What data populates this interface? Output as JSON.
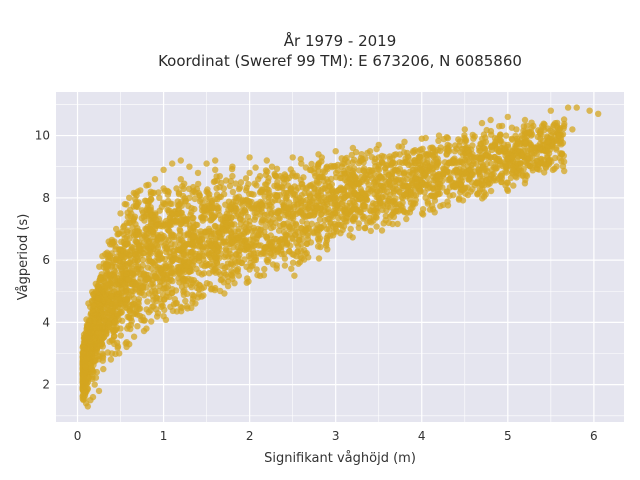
{
  "chart_data": {
    "type": "scatter",
    "title_line1": "År 1979 - 2019",
    "title_line2": "Koordinat (Sweref 99 TM): E 673206, N 6085860",
    "xlabel": "Signifikant våghöjd (m)",
    "ylabel": "Vågperiod (s)",
    "xlim": [
      -0.25,
      6.35
    ],
    "ylim": [
      0.8,
      11.4
    ],
    "x_ticks": [
      0,
      1,
      2,
      3,
      4,
      5,
      6
    ],
    "x_tick_labels": [
      "0",
      "1",
      "2",
      "3",
      "4",
      "5",
      "6"
    ],
    "y_ticks": [
      2,
      4,
      6,
      8,
      10
    ],
    "y_tick_labels": [
      "2",
      "4",
      "6",
      "8",
      "10"
    ],
    "grid": true,
    "colors": {
      "points": "#d4a520",
      "plot_bg": "#e5e5ef",
      "grid": "#ffffff"
    },
    "points": [
      [
        0.1,
        1.4
      ],
      [
        0.12,
        1.3
      ],
      [
        0.15,
        1.5
      ],
      [
        0.12,
        2.2
      ],
      [
        0.1,
        2.8
      ],
      [
        0.15,
        3.2
      ],
      [
        0.2,
        3.5
      ],
      [
        0.25,
        4.2
      ],
      [
        0.3,
        5.0
      ],
      [
        0.35,
        5.8
      ],
      [
        0.4,
        6.5
      ],
      [
        0.45,
        7.0
      ],
      [
        0.5,
        7.5
      ],
      [
        0.55,
        7.8
      ],
      [
        0.6,
        8.0
      ],
      [
        0.7,
        8.2
      ],
      [
        0.8,
        8.4
      ],
      [
        0.9,
        8.6
      ],
      [
        1.0,
        8.9
      ],
      [
        1.1,
        9.1
      ],
      [
        1.2,
        9.2
      ],
      [
        1.3,
        9.0
      ],
      [
        1.5,
        9.1
      ],
      [
        1.6,
        9.2
      ],
      [
        1.8,
        9.0
      ],
      [
        2.0,
        9.3
      ],
      [
        2.2,
        9.2
      ],
      [
        2.5,
        9.3
      ],
      [
        2.8,
        9.4
      ],
      [
        3.0,
        9.5
      ],
      [
        3.2,
        9.6
      ],
      [
        3.5,
        9.7
      ],
      [
        3.8,
        9.8
      ],
      [
        4.0,
        9.9
      ],
      [
        4.2,
        10.0
      ],
      [
        4.5,
        10.2
      ],
      [
        4.8,
        10.5
      ],
      [
        5.0,
        10.6
      ],
      [
        5.2,
        10.5
      ],
      [
        5.5,
        10.8
      ],
      [
        5.7,
        10.9
      ],
      [
        5.8,
        10.9
      ],
      [
        5.95,
        10.8
      ],
      [
        6.05,
        10.7
      ],
      [
        5.6,
        10.2
      ],
      [
        5.75,
        10.2
      ],
      [
        5.1,
        10.2
      ],
      [
        5.0,
        9.7
      ],
      [
        4.9,
        10.3
      ],
      [
        4.7,
        10.4
      ],
      [
        4.5,
        9.8
      ],
      [
        4.3,
        9.6
      ],
      [
        4.1,
        9.0
      ],
      [
        3.9,
        8.8
      ],
      [
        3.7,
        8.6
      ],
      [
        3.5,
        8.4
      ],
      [
        3.3,
        8.2
      ],
      [
        3.1,
        8.0
      ],
      [
        2.9,
        7.8
      ],
      [
        2.7,
        7.6
      ],
      [
        2.5,
        7.4
      ],
      [
        2.3,
        7.2
      ],
      [
        2.1,
        7.0
      ],
      [
        1.9,
        6.8
      ],
      [
        1.7,
        6.6
      ],
      [
        1.5,
        6.4
      ],
      [
        1.3,
        6.0
      ],
      [
        1.1,
        5.6
      ],
      [
        0.9,
        5.0
      ],
      [
        0.7,
        4.5
      ],
      [
        0.5,
        3.8
      ],
      [
        0.4,
        3.0
      ],
      [
        0.3,
        2.5
      ],
      [
        0.2,
        2.0
      ],
      [
        0.25,
        1.8
      ],
      [
        0.18,
        1.6
      ],
      [
        0.6,
        3.3
      ],
      [
        0.8,
        3.8
      ],
      [
        1.0,
        4.2
      ],
      [
        1.2,
        4.5
      ],
      [
        1.4,
        4.8
      ],
      [
        1.6,
        5.1
      ],
      [
        1.8,
        5.4
      ],
      [
        2.0,
        5.7
      ],
      [
        2.2,
        6.0
      ],
      [
        2.4,
        6.2
      ],
      [
        2.52,
        5.5
      ],
      [
        2.6,
        6.5
      ],
      [
        2.8,
        6.8
      ],
      [
        3.0,
        7.0
      ],
      [
        3.2,
        7.3
      ],
      [
        3.4,
        7.6
      ],
      [
        3.6,
        7.8
      ],
      [
        3.8,
        8.1
      ],
      [
        4.0,
        8.4
      ],
      [
        4.2,
        8.7
      ],
      [
        4.4,
        8.9
      ],
      [
        4.6,
        9.1
      ],
      [
        4.8,
        9.3
      ],
      [
        5.2,
        9.8
      ],
      [
        0.7,
        6.0
      ],
      [
        0.9,
        7.0
      ],
      [
        1.1,
        7.5
      ],
      [
        1.3,
        8.0
      ],
      [
        1.5,
        8.2
      ],
      [
        1.7,
        8.3
      ],
      [
        1.9,
        8.5
      ],
      [
        2.1,
        8.6
      ],
      [
        2.3,
        8.7
      ],
      [
        2.5,
        8.8
      ],
      [
        2.7,
        8.9
      ],
      [
        2.9,
        9.0
      ],
      [
        3.1,
        9.1
      ],
      [
        3.3,
        9.2
      ],
      [
        3.5,
        9.3
      ],
      [
        3.7,
        9.4
      ],
      [
        3.9,
        9.5
      ],
      [
        4.1,
        9.6
      ],
      [
        4.3,
        9.7
      ],
      [
        4.6,
        9.9
      ],
      [
        0.6,
        7.2
      ],
      [
        0.8,
        7.9
      ],
      [
        1.0,
        8.3
      ],
      [
        1.2,
        8.6
      ],
      [
        1.4,
        8.8
      ],
      [
        1.6,
        8.9
      ],
      [
        1.8,
        8.7
      ],
      [
        2.0,
        8.8
      ],
      [
        2.6,
        9.1
      ],
      [
        3.4,
        9.5
      ],
      [
        0.3,
        4.5
      ],
      [
        0.35,
        5.2
      ],
      [
        0.45,
        6.0
      ],
      [
        0.55,
        6.7
      ],
      [
        0.65,
        7.3
      ],
      [
        0.75,
        7.6
      ],
      [
        0.85,
        7.7
      ],
      [
        0.95,
        8.0
      ],
      [
        1.05,
        8.1
      ],
      [
        1.15,
        8.3
      ]
    ]
  }
}
